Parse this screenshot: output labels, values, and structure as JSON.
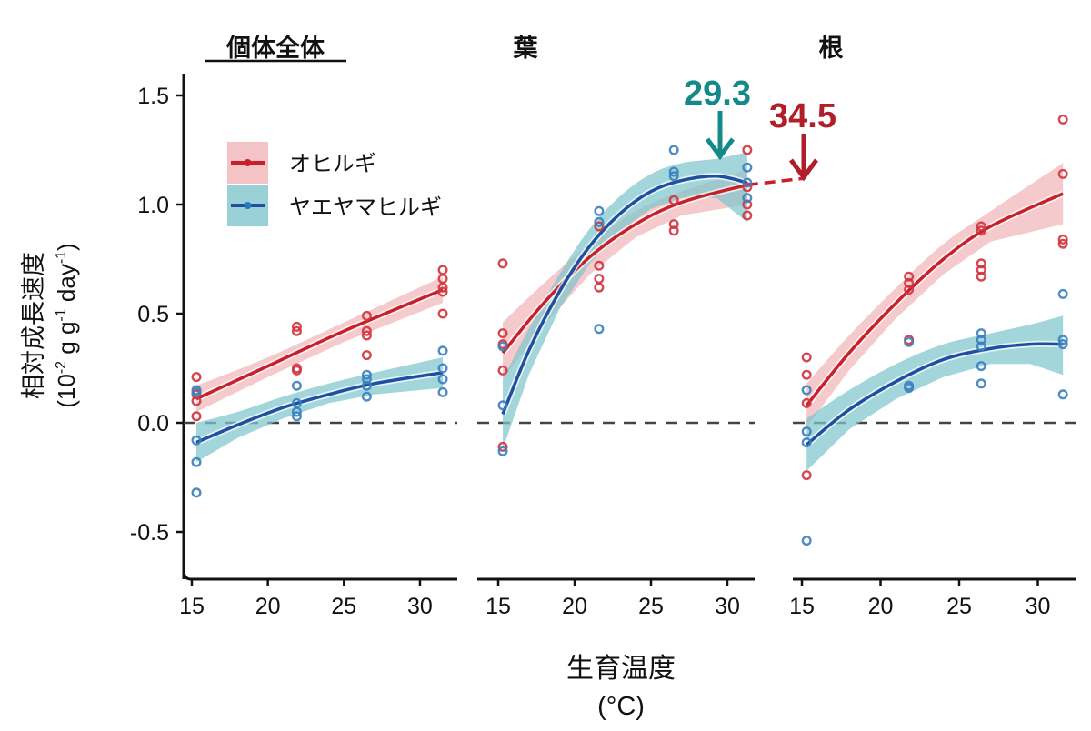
{
  "chart_data": {
    "type": "scatter",
    "ylabel_line1": "相対成長速度",
    "ylabel_line2_prefix": "(10",
    "ylabel_exp1": "-2",
    "ylabel_mid1": " g g",
    "ylabel_exp2": "-1",
    "ylabel_mid2": " day",
    "ylabel_exp3": "-1",
    "ylabel_suffix": ")",
    "xlabel_line1": "生育温度",
    "xlabel_line2": "(°C)",
    "ylim": [
      -0.7,
      1.6
    ],
    "yticks": [
      -0.5,
      0.0,
      0.5,
      1.0,
      1.5
    ],
    "ytick_labels": [
      "-0.5",
      "0.0",
      "0.5",
      "1.0",
      "1.5"
    ],
    "xticks": [
      15,
      20,
      25,
      30
    ],
    "xtick_labels": [
      "15",
      "20",
      "25",
      "30"
    ],
    "reference_line": {
      "y": 0.0,
      "style": "dashed"
    },
    "grid": false,
    "legend": {
      "position": "top-left",
      "entries": [
        {
          "name": "オヒルギ",
          "color": "#c8202a",
          "band_color": "#f2b8bb"
        },
        {
          "name": "ヤエヤマヒルギ",
          "color": "#1f4fa0",
          "band_color": "#7fc6cc"
        }
      ]
    },
    "panels": [
      {
        "title": "個体全体",
        "underlined": true,
        "xlim": [
          14.5,
          32.5
        ],
        "series": [
          {
            "name": "オヒルギ",
            "points": [
              [
                15.3,
                0.21
              ],
              [
                15.3,
                0.13
              ],
              [
                15.3,
                0.1
              ],
              [
                15.3,
                0.03
              ],
              [
                21.9,
                0.44
              ],
              [
                21.9,
                0.42
              ],
              [
                21.9,
                0.25
              ],
              [
                21.9,
                0.24
              ],
              [
                26.5,
                0.49
              ],
              [
                26.5,
                0.42
              ],
              [
                26.5,
                0.4
              ],
              [
                26.5,
                0.31
              ],
              [
                31.5,
                0.7
              ],
              [
                31.5,
                0.66
              ],
              [
                31.5,
                0.62
              ],
              [
                31.5,
                0.6
              ],
              [
                31.5,
                0.5
              ]
            ],
            "fit": [
              [
                15.3,
                0.11
              ],
              [
                20,
                0.26
              ],
              [
                25,
                0.42
              ],
              [
                31.5,
                0.61
              ]
            ],
            "band_upper": [
              [
                15.3,
                0.17
              ],
              [
                20,
                0.3
              ],
              [
                25,
                0.46
              ],
              [
                31.5,
                0.67
              ]
            ],
            "band_lower": [
              [
                15.3,
                0.05
              ],
              [
                20,
                0.21
              ],
              [
                25,
                0.37
              ],
              [
                31.5,
                0.55
              ]
            ]
          },
          {
            "name": "ヤエヤマヒルギ",
            "points": [
              [
                15.3,
                0.15
              ],
              [
                15.3,
                0.14
              ],
              [
                15.3,
                -0.08
              ],
              [
                15.3,
                -0.18
              ],
              [
                15.3,
                -0.32
              ],
              [
                21.9,
                0.17
              ],
              [
                21.9,
                0.09
              ],
              [
                21.9,
                0.05
              ],
              [
                21.9,
                0.03
              ],
              [
                26.5,
                0.22
              ],
              [
                26.5,
                0.2
              ],
              [
                26.5,
                0.17
              ],
              [
                26.5,
                0.12
              ],
              [
                31.5,
                0.33
              ],
              [
                31.5,
                0.25
              ],
              [
                31.5,
                0.2
              ],
              [
                31.5,
                0.14
              ]
            ],
            "fit": [
              [
                15.3,
                -0.09
              ],
              [
                18,
                -0.01
              ],
              [
                21,
                0.07
              ],
              [
                24,
                0.13
              ],
              [
                27,
                0.18
              ],
              [
                31.5,
                0.23
              ]
            ],
            "band_upper": [
              [
                15.3,
                0.0
              ],
              [
                18,
                0.05
              ],
              [
                21,
                0.12
              ],
              [
                24,
                0.18
              ],
              [
                27,
                0.23
              ],
              [
                31.5,
                0.3
              ]
            ],
            "band_lower": [
              [
                15.3,
                -0.18
              ],
              [
                18,
                -0.07
              ],
              [
                21,
                0.02
              ],
              [
                24,
                0.09
              ],
              [
                27,
                0.13
              ],
              [
                31.5,
                0.16
              ]
            ]
          }
        ]
      },
      {
        "title": "葉",
        "underlined": false,
        "xlim": [
          13.6,
          31.8
        ],
        "series": [
          {
            "name": "オヒルギ",
            "points": [
              [
                15.3,
                0.73
              ],
              [
                15.3,
                0.41
              ],
              [
                15.3,
                0.36
              ],
              [
                15.3,
                0.24
              ],
              [
                15.3,
                -0.11
              ],
              [
                21.6,
                0.9
              ],
              [
                21.6,
                0.72
              ],
              [
                21.6,
                0.66
              ],
              [
                21.6,
                0.62
              ],
              [
                26.5,
                1.02
              ],
              [
                26.5,
                0.91
              ],
              [
                26.5,
                0.88
              ],
              [
                31.3,
                1.25
              ],
              [
                31.3,
                1.08
              ],
              [
                31.3,
                1.0
              ],
              [
                31.3,
                0.95
              ]
            ],
            "fit": [
              [
                15.3,
                0.32
              ],
              [
                18,
                0.55
              ],
              [
                21,
                0.76
              ],
              [
                24,
                0.91
              ],
              [
                27,
                1.01
              ],
              [
                31.3,
                1.09
              ]
            ],
            "band_upper": [
              [
                15.3,
                0.46
              ],
              [
                18,
                0.64
              ],
              [
                21,
                0.82
              ],
              [
                24,
                0.97
              ],
              [
                27,
                1.06
              ],
              [
                31.3,
                1.16
              ]
            ],
            "band_lower": [
              [
                15.3,
                0.2
              ],
              [
                18,
                0.45
              ],
              [
                21,
                0.68
              ],
              [
                24,
                0.85
              ],
              [
                27,
                0.95
              ],
              [
                31.3,
                1.0
              ]
            ]
          },
          {
            "name": "ヤエヤマヒルギ",
            "points": [
              [
                15.3,
                0.35
              ],
              [
                15.3,
                0.08
              ],
              [
                15.3,
                -0.13
              ],
              [
                21.6,
                0.97
              ],
              [
                21.6,
                0.92
              ],
              [
                21.6,
                0.43
              ],
              [
                26.5,
                1.25
              ],
              [
                26.5,
                1.15
              ],
              [
                26.5,
                1.13
              ],
              [
                31.3,
                1.17
              ],
              [
                31.3,
                1.1
              ],
              [
                31.3,
                1.03
              ]
            ],
            "fit": [
              [
                15.3,
                0.04
              ],
              [
                17,
                0.33
              ],
              [
                19,
                0.6
              ],
              [
                21,
                0.81
              ],
              [
                23,
                0.96
              ],
              [
                25,
                1.06
              ],
              [
                27,
                1.11
              ],
              [
                29.3,
                1.13
              ],
              [
                31.3,
                1.1
              ]
            ],
            "band_upper": [
              [
                15.3,
                0.2
              ],
              [
                17,
                0.43
              ],
              [
                19,
                0.68
              ],
              [
                21,
                0.89
              ],
              [
                23,
                1.04
              ],
              [
                25,
                1.14
              ],
              [
                27,
                1.19
              ],
              [
                29.3,
                1.21
              ],
              [
                31.3,
                1.24
              ]
            ],
            "band_lower": [
              [
                15.3,
                -0.12
              ],
              [
                17,
                0.22
              ],
              [
                19,
                0.52
              ],
              [
                21,
                0.73
              ],
              [
                23,
                0.88
              ],
              [
                25,
                0.98
              ],
              [
                27,
                1.03
              ],
              [
                29.3,
                1.03
              ],
              [
                31.3,
                0.92
              ]
            ]
          }
        ],
        "extrapolation": {
          "series": "オヒルギ",
          "from": [
            31.3,
            1.09
          ],
          "to_px_label": "34.5",
          "to": [
            34.5,
            1.12
          ]
        }
      },
      {
        "title": "根",
        "underlined": false,
        "xlim": [
          14.4,
          32.4
        ],
        "series": [
          {
            "name": "オヒルギ",
            "points": [
              [
                15.3,
                0.3
              ],
              [
                15.3,
                0.22
              ],
              [
                15.3,
                0.09
              ],
              [
                15.3,
                -0.24
              ],
              [
                21.8,
                0.67
              ],
              [
                21.8,
                0.64
              ],
              [
                21.8,
                0.61
              ],
              [
                21.8,
                0.38
              ],
              [
                26.4,
                0.9
              ],
              [
                26.4,
                0.88
              ],
              [
                26.4,
                0.73
              ],
              [
                26.4,
                0.7
              ],
              [
                26.4,
                0.67
              ],
              [
                31.6,
                1.39
              ],
              [
                31.6,
                1.14
              ],
              [
                31.6,
                0.84
              ],
              [
                31.6,
                0.82
              ]
            ],
            "fit": [
              [
                15.3,
                0.08
              ],
              [
                18,
                0.32
              ],
              [
                21,
                0.55
              ],
              [
                24,
                0.75
              ],
              [
                27,
                0.9
              ],
              [
                31.6,
                1.05
              ]
            ],
            "band_upper": [
              [
                15.3,
                0.18
              ],
              [
                18,
                0.4
              ],
              [
                21,
                0.62
              ],
              [
                24,
                0.82
              ],
              [
                27,
                0.97
              ],
              [
                31.6,
                1.19
              ]
            ],
            "band_lower": [
              [
                15.3,
                -0.02
              ],
              [
                18,
                0.24
              ],
              [
                21,
                0.48
              ],
              [
                24,
                0.68
              ],
              [
                27,
                0.83
              ],
              [
                31.6,
                0.91
              ]
            ]
          },
          {
            "name": "ヤエヤマヒルギ",
            "points": [
              [
                15.3,
                0.15
              ],
              [
                15.3,
                -0.04
              ],
              [
                15.3,
                -0.09
              ],
              [
                15.3,
                -0.54
              ],
              [
                21.8,
                0.37
              ],
              [
                21.8,
                0.17
              ],
              [
                21.8,
                0.16
              ],
              [
                26.4,
                0.41
              ],
              [
                26.4,
                0.38
              ],
              [
                26.4,
                0.35
              ],
              [
                26.4,
                0.26
              ],
              [
                26.4,
                0.18
              ],
              [
                31.6,
                0.59
              ],
              [
                31.6,
                0.38
              ],
              [
                31.6,
                0.36
              ],
              [
                31.6,
                0.13
              ]
            ],
            "fit": [
              [
                15.3,
                -0.1
              ],
              [
                18,
                0.06
              ],
              [
                21,
                0.19
              ],
              [
                24,
                0.29
              ],
              [
                27,
                0.34
              ],
              [
                29.5,
                0.36
              ],
              [
                31.6,
                0.36
              ]
            ],
            "band_upper": [
              [
                15.3,
                0.02
              ],
              [
                18,
                0.15
              ],
              [
                21,
                0.27
              ],
              [
                24,
                0.36
              ],
              [
                27,
                0.41
              ],
              [
                29.5,
                0.45
              ],
              [
                31.6,
                0.49
              ]
            ],
            "band_lower": [
              [
                15.3,
                -0.22
              ],
              [
                18,
                -0.03
              ],
              [
                21,
                0.11
              ],
              [
                24,
                0.21
              ],
              [
                27,
                0.27
              ],
              [
                29.5,
                0.27
              ],
              [
                31.6,
                0.22
              ]
            ]
          }
        ]
      }
    ],
    "annotations": [
      {
        "text": "29.3",
        "color": "#15898a",
        "x": 29.3,
        "panel": 1,
        "target_series": "ヤエヤマヒルギ"
      },
      {
        "text": "34.5",
        "color": "#b01e2a",
        "x": 34.5,
        "panel": 1,
        "target_series": "オヒルギ"
      }
    ]
  }
}
